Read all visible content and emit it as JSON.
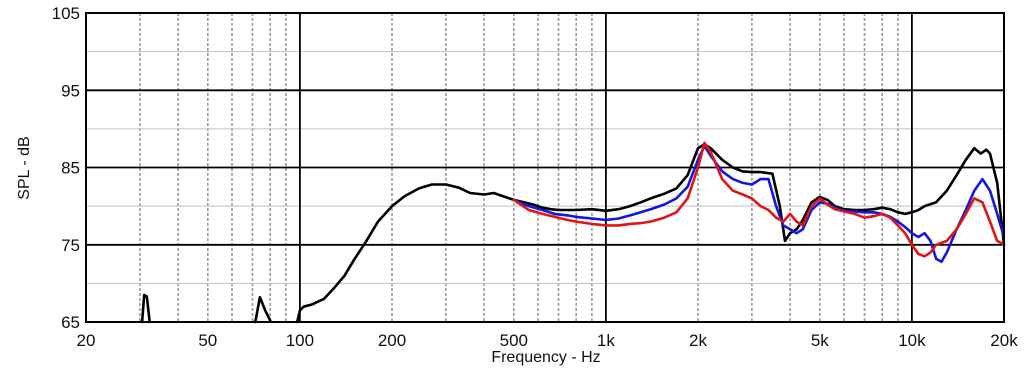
{
  "chart_data": {
    "type": "line",
    "title": "",
    "xlabel": "Frequency - Hz",
    "ylabel": "SPL - dB",
    "x_scale": "log",
    "xlim": [
      20,
      20000
    ],
    "ylim": [
      65,
      105
    ],
    "x_ticks": [
      {
        "value": 20,
        "label": "20"
      },
      {
        "value": 50,
        "label": "50"
      },
      {
        "value": 100,
        "label": "100"
      },
      {
        "value": 200,
        "label": "200"
      },
      {
        "value": 500,
        "label": "500"
      },
      {
        "value": 1000,
        "label": "1k"
      },
      {
        "value": 2000,
        "label": "2k"
      },
      {
        "value": 5000,
        "label": "5k"
      },
      {
        "value": 10000,
        "label": "10k"
      },
      {
        "value": 20000,
        "label": "20k"
      }
    ],
    "y_ticks": [
      {
        "value": 65,
        "label": "65"
      },
      {
        "value": 75,
        "label": "75"
      },
      {
        "value": 85,
        "label": "85"
      },
      {
        "value": 95,
        "label": "95"
      },
      {
        "value": 105,
        "label": "105"
      }
    ],
    "grid": true,
    "series": [
      {
        "color": "#000000",
        "segments": [
          [
            [
              30.5,
              65
            ],
            [
              31,
              68.5
            ],
            [
              31.6,
              68.3
            ],
            [
              32.3,
              65
            ]
          ],
          [
            [
              71.5,
              65
            ],
            [
              74,
              68.2
            ],
            [
              77,
              66.5
            ],
            [
              80,
              65.2
            ]
          ],
          [
            [
              98,
              65
            ],
            [
              100,
              66.5
            ],
            [
              103,
              67
            ],
            [
              110,
              67.3
            ],
            [
              120,
              68
            ],
            [
              130,
              69.5
            ],
            [
              140,
              71
            ],
            [
              150,
              73
            ],
            [
              165,
              75.5
            ],
            [
              180,
              78
            ],
            [
              200,
              80
            ],
            [
              220,
              81.3
            ],
            [
              245,
              82.3
            ],
            [
              270,
              82.8
            ],
            [
              300,
              82.8
            ],
            [
              330,
              82.4
            ],
            [
              360,
              81.7
            ],
            [
              400,
              81.5
            ],
            [
              430,
              81.7
            ],
            [
              460,
              81.3
            ],
            [
              500,
              80.8
            ],
            [
              540,
              80.5
            ],
            [
              580,
              80.2
            ],
            [
              620,
              79.8
            ],
            [
              660,
              79.6
            ],
            [
              700,
              79.5
            ],
            [
              750,
              79.5
            ],
            [
              800,
              79.5
            ],
            [
              900,
              79.6
            ],
            [
              1000,
              79.4
            ],
            [
              1100,
              79.6
            ],
            [
              1200,
              80
            ],
            [
              1300,
              80.5
            ],
            [
              1400,
              81
            ],
            [
              1550,
              81.6
            ],
            [
              1700,
              82.3
            ],
            [
              1850,
              84
            ],
            [
              2000,
              87.5
            ],
            [
              2100,
              88
            ],
            [
              2200,
              87.5
            ],
            [
              2400,
              86
            ],
            [
              2600,
              85
            ],
            [
              2800,
              84.5
            ],
            [
              3000,
              84.4
            ],
            [
              3200,
              84.4
            ],
            [
              3500,
              84.2
            ],
            [
              3700,
              80
            ],
            [
              3850,
              75.5
            ],
            [
              4000,
              76.5
            ],
            [
              4200,
              77
            ],
            [
              4400,
              78.2
            ],
            [
              4700,
              80.5
            ],
            [
              5000,
              81.2
            ],
            [
              5300,
              80.8
            ],
            [
              5600,
              80
            ],
            [
              6000,
              79.6
            ],
            [
              6500,
              79.5
            ],
            [
              7000,
              79.5
            ],
            [
              7500,
              79.6
            ],
            [
              8000,
              79.8
            ],
            [
              8500,
              79.6
            ],
            [
              9000,
              79.2
            ],
            [
              9500,
              79
            ],
            [
              10000,
              79.2
            ],
            [
              10500,
              79.5
            ],
            [
              11000,
              80
            ],
            [
              12000,
              80.5
            ],
            [
              13000,
              82
            ],
            [
              14000,
              84
            ],
            [
              15000,
              86
            ],
            [
              16000,
              87.5
            ],
            [
              16800,
              86.8
            ],
            [
              17500,
              87.3
            ],
            [
              18000,
              86.8
            ],
            [
              19000,
              83
            ],
            [
              20000,
              75
            ]
          ]
        ]
      },
      {
        "color": "#1515e0",
        "segments": [
          [
            [
              500,
              80.8
            ],
            [
              560,
              80
            ],
            [
              620,
              79.5
            ],
            [
              680,
              79
            ],
            [
              750,
              78.8
            ],
            [
              800,
              78.6
            ],
            [
              900,
              78.4
            ],
            [
              1000,
              78.2
            ],
            [
              1100,
              78.4
            ],
            [
              1200,
              78.8
            ],
            [
              1300,
              79.2
            ],
            [
              1400,
              79.6
            ],
            [
              1550,
              80.2
            ],
            [
              1700,
              81
            ],
            [
              1850,
              82.5
            ],
            [
              2000,
              86
            ],
            [
              2100,
              87.8
            ],
            [
              2200,
              86.5
            ],
            [
              2400,
              84.5
            ],
            [
              2600,
              83.5
            ],
            [
              2800,
              83
            ],
            [
              3000,
              82.8
            ],
            [
              3200,
              83.5
            ],
            [
              3400,
              83.5
            ],
            [
              3600,
              80
            ],
            [
              3800,
              77.5
            ],
            [
              4000,
              77
            ],
            [
              4200,
              76.5
            ],
            [
              4400,
              77
            ],
            [
              4700,
              79.5
            ],
            [
              5000,
              80.5
            ],
            [
              5300,
              80.3
            ],
            [
              5600,
              79.8
            ],
            [
              6000,
              79.4
            ],
            [
              6500,
              79.3
            ],
            [
              7000,
              79.2
            ],
            [
              7500,
              79.2
            ],
            [
              8000,
              79
            ],
            [
              8500,
              78.6
            ],
            [
              9000,
              78
            ],
            [
              9500,
              77.3
            ],
            [
              10000,
              76.5
            ],
            [
              10500,
              76
            ],
            [
              11000,
              76.5
            ],
            [
              11500,
              75.5
            ],
            [
              12000,
              73.2
            ],
            [
              12500,
              72.8
            ],
            [
              13000,
              74
            ],
            [
              14000,
              77
            ],
            [
              15000,
              79.5
            ],
            [
              16000,
              82
            ],
            [
              17000,
              83.5
            ],
            [
              18000,
              82
            ],
            [
              19000,
              79
            ],
            [
              20000,
              76
            ]
          ]
        ]
      },
      {
        "color": "#e01515",
        "segments": [
          [
            [
              500,
              80.8
            ],
            [
              560,
              79.5
            ],
            [
              620,
              79
            ],
            [
              680,
              78.6
            ],
            [
              750,
              78.2
            ],
            [
              800,
              78
            ],
            [
              900,
              77.7
            ],
            [
              1000,
              77.5
            ],
            [
              1100,
              77.5
            ],
            [
              1200,
              77.7
            ],
            [
              1300,
              77.8
            ],
            [
              1400,
              78
            ],
            [
              1550,
              78.5
            ],
            [
              1700,
              79.2
            ],
            [
              1850,
              81
            ],
            [
              2000,
              85
            ],
            [
              2100,
              88.2
            ],
            [
              2200,
              87
            ],
            [
              2400,
              83.5
            ],
            [
              2600,
              82
            ],
            [
              2800,
              81.5
            ],
            [
              3000,
              81
            ],
            [
              3200,
              80
            ],
            [
              3400,
              79.5
            ],
            [
              3600,
              78.5
            ],
            [
              3800,
              78
            ],
            [
              4000,
              79
            ],
            [
              4200,
              78
            ],
            [
              4400,
              77.5
            ],
            [
              4700,
              80
            ],
            [
              5000,
              81
            ],
            [
              5300,
              80.2
            ],
            [
              5600,
              79.6
            ],
            [
              6000,
              79.3
            ],
            [
              6500,
              79
            ],
            [
              7000,
              78.5
            ],
            [
              7500,
              78.7
            ],
            [
              8000,
              79
            ],
            [
              8500,
              78.5
            ],
            [
              9000,
              77.5
            ],
            [
              9500,
              76.5
            ],
            [
              10000,
              75
            ],
            [
              10500,
              73.8
            ],
            [
              11000,
              73.5
            ],
            [
              11500,
              74
            ],
            [
              12000,
              75
            ],
            [
              13000,
              75.5
            ],
            [
              14000,
              77
            ],
            [
              15000,
              79
            ],
            [
              16000,
              81
            ],
            [
              17000,
              80.5
            ],
            [
              18000,
              78
            ],
            [
              19000,
              75.5
            ],
            [
              20000,
              75
            ]
          ]
        ]
      }
    ]
  }
}
